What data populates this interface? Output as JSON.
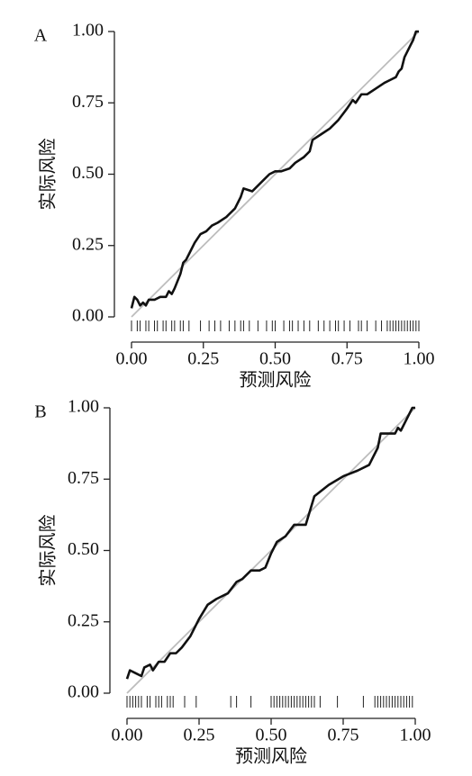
{
  "chart_data": [
    {
      "type": "line",
      "panel_label": "A",
      "x_label": "预测风险",
      "y_label": "实际风险",
      "x": [
        0,
        0.01,
        0.02,
        0.03,
        0.04,
        0.05,
        0.06,
        0.08,
        0.1,
        0.12,
        0.13,
        0.14,
        0.15,
        0.17,
        0.18,
        0.19,
        0.2,
        0.22,
        0.24,
        0.26,
        0.28,
        0.3,
        0.33,
        0.36,
        0.38,
        0.39,
        0.42,
        0.44,
        0.46,
        0.48,
        0.5,
        0.52,
        0.55,
        0.57,
        0.6,
        0.62,
        0.63,
        0.66,
        0.69,
        0.72,
        0.75,
        0.77,
        0.78,
        0.8,
        0.82,
        0.85,
        0.88,
        0.9,
        0.92,
        0.93,
        0.94,
        0.95,
        0.97,
        0.98,
        0.99,
        1.0
      ],
      "series": [
        {
          "color": "#111111",
          "values": [
            0.03,
            0.07,
            0.06,
            0.04,
            0.05,
            0.04,
            0.06,
            0.06,
            0.07,
            0.07,
            0.09,
            0.08,
            0.1,
            0.15,
            0.19,
            0.2,
            0.22,
            0.26,
            0.29,
            0.3,
            0.32,
            0.33,
            0.35,
            0.38,
            0.42,
            0.45,
            0.44,
            0.46,
            0.48,
            0.5,
            0.51,
            0.51,
            0.52,
            0.54,
            0.56,
            0.58,
            0.62,
            0.64,
            0.66,
            0.69,
            0.73,
            0.76,
            0.75,
            0.78,
            0.78,
            0.8,
            0.82,
            0.83,
            0.84,
            0.86,
            0.87,
            0.91,
            0.95,
            0.97,
            1.0,
            1.0
          ]
        }
      ],
      "reference_color": "#bdbdbd",
      "rug": [
        0,
        0.02,
        0.03,
        0.05,
        0.06,
        0.08,
        0.09,
        0.11,
        0.12,
        0.14,
        0.15,
        0.17,
        0.18,
        0.2,
        0.24,
        0.27,
        0.29,
        0.31,
        0.34,
        0.36,
        0.38,
        0.39,
        0.41,
        0.44,
        0.47,
        0.49,
        0.5,
        0.53,
        0.55,
        0.56,
        0.58,
        0.6,
        0.62,
        0.65,
        0.67,
        0.69,
        0.71,
        0.72,
        0.74,
        0.76,
        0.79,
        0.8,
        0.82,
        0.85,
        0.87,
        0.89,
        0.9,
        0.91,
        0.92,
        0.93,
        0.94,
        0.95,
        0.96,
        0.97,
        0.98,
        0.99,
        1.0
      ],
      "xlim": [
        0,
        1
      ],
      "ylim": [
        0,
        1
      ],
      "xticks": [
        {
          "value": 0,
          "label": "0.00"
        },
        {
          "value": 0.25,
          "label": "0.25"
        },
        {
          "value": 0.5,
          "label": "0.50"
        },
        {
          "value": 0.75,
          "label": "0.75"
        },
        {
          "value": 1,
          "label": "1.00"
        }
      ],
      "yticks": [
        {
          "value": 0,
          "label": "0.00"
        },
        {
          "value": 0.25,
          "label": "0.25"
        },
        {
          "value": 0.5,
          "label": "0.50"
        },
        {
          "value": 0.75,
          "label": "0.75"
        },
        {
          "value": 1,
          "label": "1.00"
        }
      ]
    },
    {
      "type": "line",
      "panel_label": "B",
      "x_label": "预测风险",
      "y_label": "实际风险",
      "x": [
        0,
        0.01,
        0.03,
        0.05,
        0.06,
        0.08,
        0.09,
        0.11,
        0.13,
        0.15,
        0.17,
        0.19,
        0.22,
        0.25,
        0.28,
        0.31,
        0.35,
        0.38,
        0.4,
        0.43,
        0.46,
        0.48,
        0.5,
        0.52,
        0.55,
        0.58,
        0.62,
        0.65,
        0.7,
        0.75,
        0.8,
        0.84,
        0.87,
        0.88,
        0.91,
        0.93,
        0.94,
        0.95,
        0.97,
        0.99,
        1.0
      ],
      "series": [
        {
          "color": "#111111",
          "values": [
            0.05,
            0.08,
            0.07,
            0.06,
            0.09,
            0.1,
            0.08,
            0.11,
            0.11,
            0.14,
            0.14,
            0.16,
            0.2,
            0.26,
            0.31,
            0.33,
            0.35,
            0.39,
            0.4,
            0.43,
            0.43,
            0.44,
            0.49,
            0.53,
            0.55,
            0.59,
            0.59,
            0.69,
            0.73,
            0.76,
            0.78,
            0.8,
            0.86,
            0.91,
            0.91,
            0.91,
            0.93,
            0.92,
            0.96,
            1.0,
            1.0
          ]
        }
      ],
      "reference_color": "#bdbdbd",
      "rug": [
        0,
        0.01,
        0.02,
        0.03,
        0.04,
        0.05,
        0.07,
        0.08,
        0.1,
        0.11,
        0.12,
        0.14,
        0.15,
        0.16,
        0.2,
        0.24,
        0.36,
        0.38,
        0.43,
        0.5,
        0.51,
        0.52,
        0.53,
        0.54,
        0.55,
        0.56,
        0.57,
        0.58,
        0.59,
        0.6,
        0.61,
        0.62,
        0.63,
        0.64,
        0.65,
        0.67,
        0.73,
        0.82,
        0.86,
        0.87,
        0.88,
        0.89,
        0.9,
        0.91,
        0.92,
        0.93,
        0.94,
        0.95,
        0.96,
        0.97,
        0.98,
        0.99
      ],
      "xlim": [
        0,
        1
      ],
      "ylim": [
        0,
        1
      ],
      "xticks": [
        {
          "value": 0,
          "label": "0.00"
        },
        {
          "value": 0.25,
          "label": "0.25"
        },
        {
          "value": 0.5,
          "label": "0.50"
        },
        {
          "value": 0.75,
          "label": "0.75"
        },
        {
          "value": 1,
          "label": "1.00"
        }
      ],
      "yticks": [
        {
          "value": 0,
          "label": "0.00"
        },
        {
          "value": 0.25,
          "label": "0.25"
        },
        {
          "value": 0.5,
          "label": "0.50"
        },
        {
          "value": 0.75,
          "label": "0.75"
        },
        {
          "value": 1,
          "label": "1.00"
        }
      ]
    }
  ]
}
